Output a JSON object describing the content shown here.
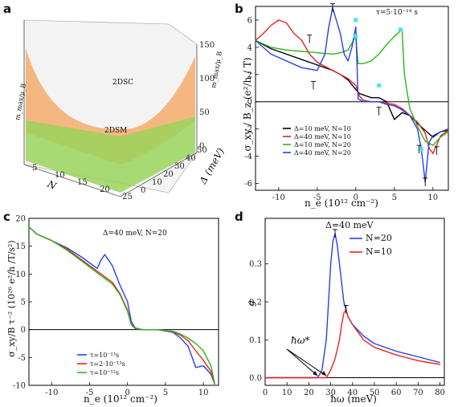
{
  "panels": {
    "a": {
      "letter": "a",
      "region_top": "2DSC",
      "region_bottom": "2DSM",
      "xlabel": "N",
      "ylabel": "Δ (meV)",
      "zlabel_left": "m_max/μ_B",
      "zlabel_right": "m_max/μ_B",
      "x_ticks": [
        "5",
        "10",
        "15",
        "20",
        "25"
      ],
      "y_ticks": [
        "0",
        "10",
        "20",
        "30",
        "40",
        "50"
      ],
      "z_ticks": [
        "0",
        "50",
        "100",
        "150"
      ]
    },
    "b": {
      "letter": "b",
      "annotation": "τ=5·10⁻¹⁴ s",
      "xlabel": "n_e (10¹² cm⁻²)",
      "ylabel": "σ_xy / B_z (e²/h / T)",
      "legend": [
        "Δ=10 meV, N=10",
        "Δ=40 meV, N=10",
        "Δ=10 meV, N=20",
        "Δ=40 meV, N=20"
      ]
    },
    "c": {
      "letter": "c",
      "annotation": "Δ=40 meV, N=20",
      "xlabel": "n_e (10¹² cm⁻²)",
      "ylabel": "σ_xy/B τ⁻² (10²⁶ e²/h /T/s²)",
      "legend": [
        "τ=10⁻¹³s",
        "τ=2·10⁻¹³s",
        "τ=10⁻¹²s"
      ]
    },
    "d": {
      "letter": "d",
      "annotation": "Δ=40 meV",
      "xlabel": "ħω (meV)",
      "ylabel": "g",
      "arrow_label": "ħω*",
      "legend": [
        "N=20",
        "N=10"
      ]
    }
  },
  "colors": {
    "black": "#000000",
    "red": "#e8241b",
    "green": "#2cb51c",
    "blue": "#2a3df2",
    "cyan": "#46e6f0",
    "surface_orange": "#f4b37a",
    "surface_green": "#9ad35a"
  },
  "chart_data": [
    {
      "id": "b",
      "type": "line",
      "xlim": [
        -13,
        12
      ],
      "ylim": [
        -6.5,
        7
      ],
      "x_ticks": [
        -10,
        -5,
        0,
        5,
        10
      ],
      "y_ticks": [
        -6,
        -4,
        -2,
        0,
        2,
        4,
        6
      ],
      "series": [
        {
          "name": "Δ=10 meV, N=10",
          "color": "#000000",
          "x": [
            -13,
            -11,
            -9,
            -7,
            -5,
            -3,
            -2,
            -1,
            0,
            0.5,
            1,
            2,
            3,
            4,
            5,
            6,
            7,
            8,
            9,
            10,
            11,
            12
          ],
          "y": [
            4.5,
            3.9,
            3.5,
            3.1,
            2.7,
            2.3,
            2.0,
            1.6,
            0.9,
            0.6,
            0.5,
            0.3,
            0.3,
            0.0,
            -1.3,
            -0.8,
            -1.0,
            -1.6,
            -2.1,
            -2.6,
            -2.2,
            -2.1
          ]
        },
        {
          "name": "Δ=40 meV, N=10",
          "color": "#e8241b",
          "x": [
            -13,
            -12,
            -11,
            -10,
            -9,
            -8,
            -7,
            -6,
            -5,
            -4,
            -3,
            -2,
            -1,
            0,
            0.5,
            1,
            2,
            3,
            4,
            5,
            6,
            7,
            8,
            9,
            9.5,
            10,
            11,
            12
          ],
          "y": [
            4.5,
            5.0,
            5.6,
            6.0,
            5.8,
            5.0,
            4.5,
            3.5,
            2.9,
            2.6,
            2.3,
            2.0,
            1.7,
            1.2,
            0.4,
            0.1,
            0.0,
            0.0,
            -0.1,
            -0.2,
            -0.5,
            -1.0,
            -1.5,
            -2.3,
            -3.4,
            -3.8,
            -2.5,
            -2.1
          ]
        },
        {
          "name": "Δ=10 meV, N=20",
          "color": "#2cb51c",
          "x": [
            -13,
            -11,
            -9,
            -7,
            -5,
            -3,
            -2,
            -1,
            -0.3,
            0,
            0.3,
            1,
            2,
            3,
            4,
            5,
            6,
            6.3,
            7,
            8,
            9,
            10,
            11,
            12
          ],
          "y": [
            4.5,
            4.0,
            3.8,
            3.7,
            3.6,
            3.5,
            3.6,
            3.8,
            4.5,
            4.8,
            2.8,
            2.8,
            3.0,
            3.5,
            4.2,
            4.8,
            5.3,
            2.0,
            -0.5,
            -1.8,
            -2.9,
            -3.2,
            -2.6,
            -2.2
          ]
        },
        {
          "name": "Δ=40 meV, N=20",
          "color": "#2a3df2",
          "x": [
            -13,
            -11,
            -9,
            -7,
            -5,
            -4,
            -3.5,
            -3,
            -2,
            -1.5,
            -1,
            -0.5,
            0,
            0.3,
            1,
            2,
            3,
            4,
            5,
            6,
            7,
            8,
            8.5,
            9,
            9.5,
            10,
            11,
            12
          ],
          "y": [
            4.5,
            3.5,
            3.0,
            2.5,
            2.3,
            3.5,
            5.5,
            6.9,
            5.0,
            3.5,
            3.0,
            4.0,
            5.5,
            0.2,
            0.0,
            0.0,
            0.0,
            -0.2,
            -0.3,
            -0.6,
            -1.0,
            -2.0,
            -3.5,
            -5.9,
            -3.0,
            -2.5,
            -2.2,
            -2.0
          ]
        }
      ],
      "markers": [
        {
          "x": -3,
          "y": 6.9,
          "color": "#000000"
        },
        {
          "x": -6,
          "y": 4.6,
          "color": "#000000"
        },
        {
          "x": -5.5,
          "y": 1.2,
          "color": "#000000"
        },
        {
          "x": 3.0,
          "y": -0.7,
          "color": "#000000"
        },
        {
          "x": 9.0,
          "y": -5.9,
          "color": "#000000"
        },
        {
          "x": 10.5,
          "y": -3.6,
          "color": "#000000"
        },
        {
          "x": 8.2,
          "y": -3.5,
          "color": "#000000"
        },
        {
          "x": 0.0,
          "y": 4.8,
          "color": "#46e6f0"
        },
        {
          "x": 0.0,
          "y": 6.0,
          "color": "#46e6f0"
        },
        {
          "x": 5.8,
          "y": 5.3,
          "color": "#46e6f0"
        },
        {
          "x": 3.0,
          "y": 1.2,
          "color": "#46e6f0"
        },
        {
          "x": 8.5,
          "y": -3.5,
          "color": "#46e6f0"
        }
      ]
    },
    {
      "id": "c",
      "type": "line",
      "xlim": [
        -13,
        12
      ],
      "ylim": [
        -10,
        20
      ],
      "x_ticks": [
        -10,
        -5,
        0,
        5,
        10
      ],
      "y_ticks": [
        -10,
        -5,
        0,
        5,
        10,
        15,
        20
      ],
      "series": [
        {
          "name": "τ=10⁻¹³s",
          "color": "#2a3df2",
          "x": [
            -13,
            -12,
            -10,
            -8,
            -6,
            -4,
            -3.5,
            -3,
            -2,
            -1,
            0,
            0.5,
            1,
            2,
            4,
            6,
            7,
            8,
            9,
            10,
            11,
            11.5
          ],
          "y": [
            18.5,
            17.2,
            16.0,
            14.7,
            13.0,
            11.0,
            12.5,
            13.5,
            11.5,
            8.0,
            5.0,
            1.5,
            0.3,
            0.0,
            0.0,
            -0.5,
            -1.5,
            -3.0,
            -6.8,
            -6.5,
            -8.0,
            -9.8
          ]
        },
        {
          "name": "τ=2·10⁻¹³s",
          "color": "#e8241b",
          "x": [
            -13,
            -12,
            -10,
            -8,
            -6,
            -4,
            -3,
            -2,
            -1,
            0,
            0.5,
            1,
            2,
            4,
            6,
            7,
            8,
            9,
            10,
            11,
            11.5
          ],
          "y": [
            18.5,
            17.2,
            16.0,
            14.5,
            12.5,
            10.5,
            9.5,
            8.5,
            6.5,
            3.5,
            1.0,
            0.2,
            0.0,
            0.0,
            -0.4,
            -1.0,
            -2.0,
            -3.8,
            -5.5,
            -7.5,
            -9.8
          ]
        },
        {
          "name": "τ=10⁻¹²s",
          "color": "#2cb51c",
          "x": [
            -13,
            -12,
            -10,
            -8,
            -6,
            -4,
            -3,
            -2,
            -1,
            0,
            0.5,
            1,
            2,
            4,
            6,
            7,
            8,
            9,
            10,
            11,
            11.5
          ],
          "y": [
            18.5,
            17.2,
            16.0,
            14.3,
            12.3,
            10.2,
            9.2,
            8.2,
            6.3,
            3.3,
            0.9,
            0.2,
            0.0,
            0.0,
            -0.3,
            -0.8,
            -1.5,
            -2.5,
            -3.8,
            -6.5,
            -9.8
          ]
        }
      ]
    },
    {
      "id": "d",
      "type": "line",
      "xlim": [
        0,
        82
      ],
      "ylim": [
        -0.02,
        0.42
      ],
      "x_ticks": [
        0,
        10,
        20,
        30,
        40,
        50,
        60,
        70,
        80
      ],
      "y_ticks": [
        0.0,
        0.1,
        0.2,
        0.3
      ],
      "series": [
        {
          "name": "N=20",
          "color": "#2a3df2",
          "x": [
            0,
            20,
            24,
            26,
            28,
            29,
            30,
            31,
            32,
            33,
            34,
            35,
            36,
            38,
            40,
            45,
            50,
            60,
            70,
            80
          ],
          "y": [
            0,
            0,
            0,
            0.02,
            0.1,
            0.2,
            0.3,
            0.36,
            0.38,
            0.35,
            0.3,
            0.25,
            0.2,
            0.16,
            0.14,
            0.11,
            0.09,
            0.07,
            0.055,
            0.04
          ]
        },
        {
          "name": "N=10",
          "color": "#e8241b",
          "x": [
            0,
            25,
            28,
            30,
            32,
            34,
            35,
            36,
            37,
            38,
            40,
            45,
            50,
            60,
            70,
            80
          ],
          "y": [
            0,
            0,
            0.0,
            0.02,
            0.05,
            0.1,
            0.14,
            0.17,
            0.18,
            0.16,
            0.14,
            0.1,
            0.08,
            0.06,
            0.045,
            0.035
          ]
        }
      ],
      "markers": [
        {
          "x": 32,
          "y": 0.38,
          "color": "#000000"
        },
        {
          "x": 37,
          "y": 0.18,
          "color": "#000000"
        }
      ],
      "arrow_targets": [
        24,
        28
      ]
    }
  ]
}
